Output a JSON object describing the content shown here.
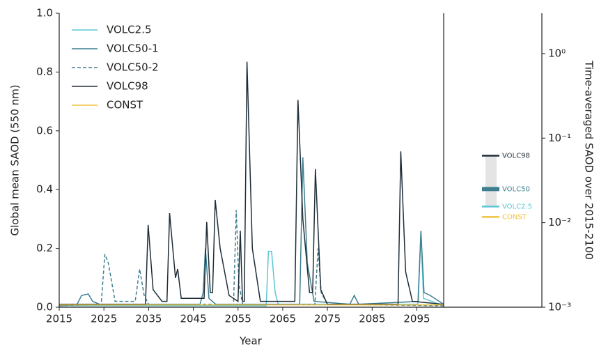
{
  "chart_data": [
    {
      "type": "line",
      "xlabel": "Year",
      "ylabel": "Global mean SAOD (550 nm)",
      "xlim": [
        2015,
        2101
      ],
      "xticks": [
        2015,
        2025,
        2035,
        2045,
        2055,
        2065,
        2075,
        2085,
        2095
      ],
      "ylim": [
        0,
        1
      ],
      "yticks": [
        {
          "value": 0,
          "label": "0.0"
        },
        0.2,
        0.4,
        0.6,
        0.8,
        {
          "value": 1,
          "label": "1.0"
        }
      ],
      "legend": "upper left",
      "series": [
        {
          "name": "VOLC2.5",
          "color": "#5cc6d4",
          "dash": false,
          "x": [
            2015,
            2061.3,
            2061.8,
            2062.5,
            2063.3,
            2064,
            2095.2,
            2095.9,
            2096.5,
            2101
          ],
          "values": [
            0.005,
            0.005,
            0.19,
            0.19,
            0.05,
            0.01,
            0.01,
            0.25,
            0.03,
            0.005
          ]
        },
        {
          "name": "VOLC50-1",
          "color": "#3d7f90",
          "dash": false,
          "x": [
            2015,
            2019,
            2020,
            2021.5,
            2022.5,
            2024,
            2046.5,
            2047.2,
            2047.7,
            2048.5,
            2050,
            2068.8,
            2069.5,
            2070.5,
            2072,
            2080,
            2081,
            2082,
            2095.3,
            2095.9,
            2096.6,
            2098,
            2101
          ],
          "values": [
            0.005,
            0.01,
            0.04,
            0.045,
            0.02,
            0.01,
            0.01,
            0.05,
            0.2,
            0.03,
            0.01,
            0.01,
            0.51,
            0.15,
            0.02,
            0.01,
            0.04,
            0.01,
            0.02,
            0.26,
            0.05,
            0.04,
            0.01
          ]
        },
        {
          "name": "VOLC50-2",
          "color": "#3d7f90",
          "dash": true,
          "x": [
            2015,
            2024.4,
            2025.2,
            2026,
            2027.5,
            2032,
            2033,
            2034,
            2035,
            2054,
            2054.6,
            2055.2,
            2056,
            2072.2,
            2072.9,
            2073.6,
            2075,
            2101
          ],
          "values": [
            0.005,
            0.01,
            0.18,
            0.15,
            0.02,
            0.02,
            0.13,
            0.04,
            0.01,
            0.01,
            0.33,
            0.08,
            0.01,
            0.01,
            0.2,
            0.05,
            0.01,
            0.005
          ]
        },
        {
          "name": "VOLC98",
          "color": "#1e2d38",
          "dash": false,
          "x": [
            2015,
            2034.3,
            2034.9,
            2036,
            2038,
            2039.1,
            2039.7,
            2041,
            2041.5,
            2042.3,
            2047.4,
            2048,
            2048.8,
            2049.3,
            2049.9,
            2051,
            2053,
            2055,
            2055.5,
            2056,
            2056.4,
            2057,
            2058.2,
            2060,
            2067.7,
            2068.4,
            2069.5,
            2071,
            2071.7,
            2072.3,
            2073.5,
            2075,
            2090.8,
            2091.4,
            2092.5,
            2094,
            2101
          ],
          "values": [
            0.01,
            0.01,
            0.28,
            0.06,
            0.02,
            0.02,
            0.32,
            0.1,
            0.13,
            0.03,
            0.03,
            0.29,
            0.05,
            0.05,
            0.365,
            0.2,
            0.04,
            0.02,
            0.26,
            0.02,
            0.02,
            0.835,
            0.2,
            0.02,
            0.02,
            0.705,
            0.3,
            0.05,
            0.05,
            0.47,
            0.06,
            0.01,
            0.01,
            0.53,
            0.12,
            0.02,
            0.01
          ]
        },
        {
          "name": "CONST",
          "color": "#f0c040",
          "dash": false,
          "x": [
            2015,
            2101
          ],
          "values": [
            0.008,
            0.008
          ]
        }
      ]
    },
    {
      "type": "level",
      "ylabel": "Time-averaged SAOD over 2015-2100",
      "log": true,
      "ylim": [
        0.001,
        3
      ],
      "yticks": [
        {
          "value": 1,
          "label": "10⁰"
        },
        {
          "value": 0.1,
          "label": "10⁻¹"
        },
        {
          "value": 0.01,
          "label": "10⁻²"
        },
        {
          "value": 0.001,
          "label": "10⁻³"
        }
      ],
      "categories": [
        "VOLC98",
        "VOLC50",
        "VOLC2.5",
        "CONST"
      ],
      "values": [
        0.062,
        0.025,
        0.0155,
        0.0117
      ],
      "colors": [
        "#1e2d38",
        "#3d7f90",
        "#5cc6d4",
        "#f0c040"
      ],
      "band_color": "#e4e4e4"
    }
  ]
}
